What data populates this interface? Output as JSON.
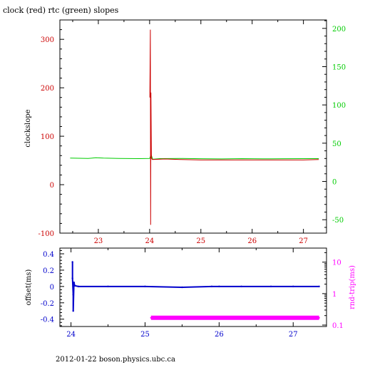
{
  "title": "clock (red) rtc (green) slopes",
  "footer": "2012-01-22 boson.physics.ubc.ca",
  "colors": {
    "frame": "#000000",
    "red": "#cc0000",
    "green": "#00cc00",
    "blue": "#0000cc",
    "magenta": "#ff00ff"
  },
  "chart_data": [
    {
      "type": "line",
      "ylabel": "clockslope",
      "y2label": "",
      "xlim": [
        22.25,
        27.45
      ],
      "ylim": [
        -100,
        340
      ],
      "y2lim": [
        -67.5,
        211
      ],
      "x_ticks": [
        23,
        24,
        25,
        26,
        27
      ],
      "x_tick_labels": [
        "23",
        "24",
        "25",
        "26",
        "27"
      ],
      "y_ticks": [
        -100,
        0,
        100,
        200,
        300
      ],
      "y_tick_labels": [
        "-100",
        "0",
        "100",
        "200",
        "300"
      ],
      "y2_ticks": [
        -50,
        0,
        50,
        100,
        150,
        200
      ],
      "y2_tick_labels": [
        "-50",
        "0",
        "50",
        "100",
        "150",
        "200"
      ],
      "series": [
        {
          "color": "#00cc00",
          "axis": "right",
          "x": [
            22.45,
            22.8,
            22.95,
            23.1,
            23.4,
            23.8,
            24.0,
            24.03,
            24.06,
            24.2,
            24.6,
            25.0,
            25.4,
            25.8,
            26.2,
            26.6,
            27.0,
            27.3
          ],
          "y": [
            30.5,
            30.0,
            31.0,
            30.5,
            30.0,
            29.8,
            30.0,
            35.0,
            29.0,
            29.8,
            30.0,
            29.7,
            29.5,
            29.8,
            29.6,
            29.7,
            29.8,
            29.8
          ]
        },
        {
          "color": "#cc0000",
          "axis": "left",
          "x": [
            24.005,
            24.015,
            24.02,
            24.025,
            24.035,
            24.05,
            24.3,
            24.6,
            25.0,
            25.4,
            25.8,
            26.2,
            26.6,
            27.0,
            27.3
          ],
          "y": [
            180,
            320,
            -83,
            190,
            55,
            52,
            53,
            52,
            51,
            51,
            51,
            51,
            51,
            51,
            52
          ]
        }
      ]
    },
    {
      "type": "scatter",
      "ylabel": "offset(ms)",
      "y2label": "rnd-trip(ms)",
      "y2scale": "log",
      "xlim": [
        23.85,
        27.45
      ],
      "ylim": [
        -0.49,
        0.47
      ],
      "y2lim": [
        0.09,
        28
      ],
      "x_ticks": [
        24,
        25,
        26,
        27
      ],
      "x_tick_labels": [
        "24",
        "25",
        "26",
        "27"
      ],
      "y_ticks": [
        -0.4,
        -0.2,
        0,
        0.2,
        0.4
      ],
      "y_tick_labels": [
        "-0.4",
        "-0.2",
        "0",
        "0.2",
        "0.4"
      ],
      "y2_ticks": [
        0.1,
        1,
        10
      ],
      "y2_tick_labels": [
        "0.1",
        "1",
        "10"
      ],
      "series": [
        {
          "color": "#0000cc",
          "axis": "left",
          "x": [
            24.02,
            24.02,
            24.03,
            24.03,
            24.04,
            24.05,
            24.1,
            24.5,
            25.0,
            25.5,
            25.9,
            26.0,
            26.3,
            26.7,
            27.0,
            27.35
          ],
          "y": [
            0.3,
            0.1,
            -0.1,
            -0.3,
            0.05,
            0.01,
            0.0,
            0.0,
            0.0,
            -0.01,
            0.0,
            0.0,
            0.0,
            0.0,
            0.0,
            0.0
          ]
        },
        {
          "color": "#ff00ff",
          "axis": "right",
          "x": [
            25.08,
            25.3,
            25.6,
            25.9,
            26.2,
            26.5,
            26.8,
            27.1,
            27.35
          ],
          "y": [
            0.17,
            0.17,
            0.17,
            0.17,
            0.17,
            0.17,
            0.17,
            0.17,
            0.17
          ]
        }
      ]
    }
  ]
}
